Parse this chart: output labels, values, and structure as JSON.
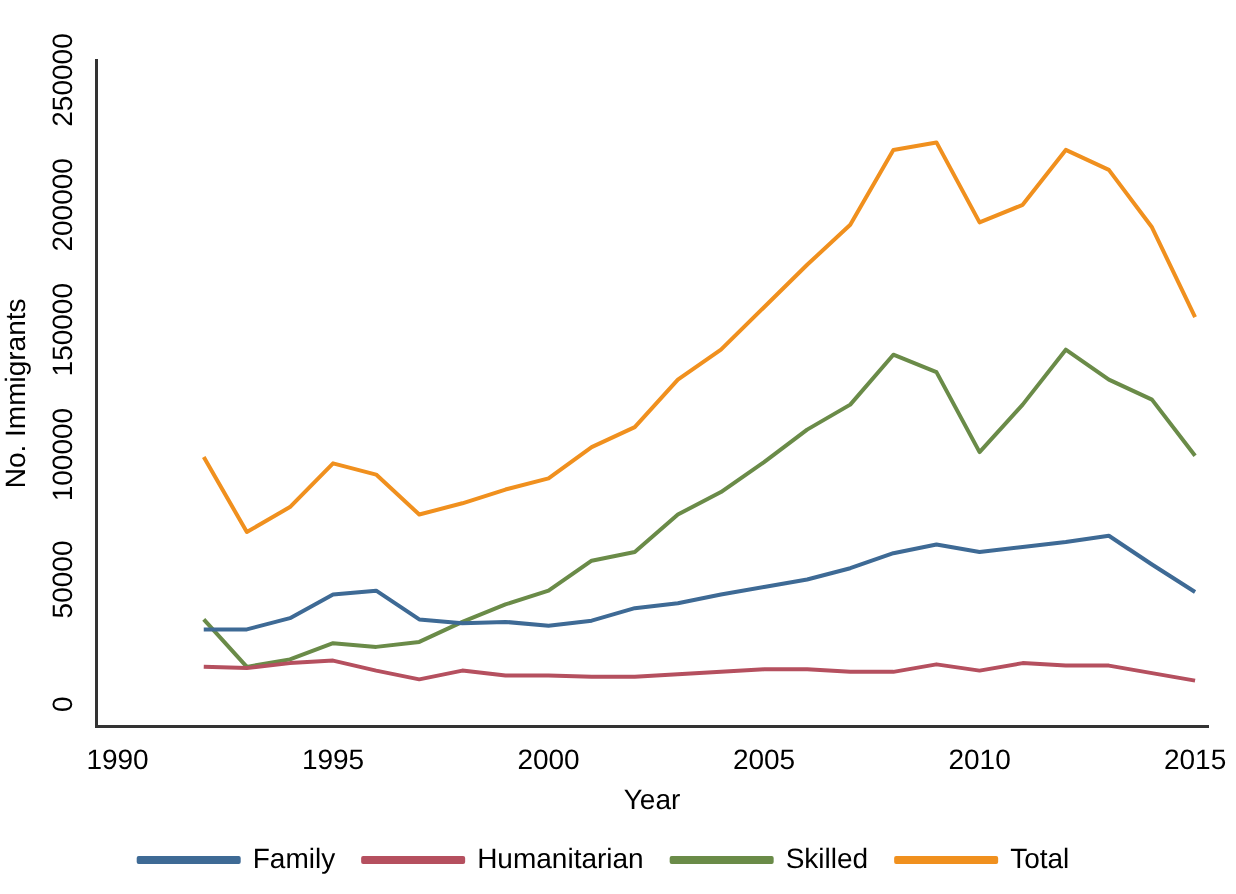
{
  "chart_data": {
    "type": "line",
    "xlabel": "Year",
    "ylabel": "No. Immigrants",
    "x": [
      1992,
      1993,
      1994,
      1995,
      1996,
      1997,
      1998,
      1999,
      2000,
      2001,
      2002,
      2003,
      2004,
      2005,
      2006,
      2007,
      2008,
      2009,
      2010,
      2011,
      2012,
      2013,
      2014,
      2015
    ],
    "series": [
      {
        "name": "Family",
        "color": "#3e6a95",
        "values": [
          30000,
          30000,
          34500,
          44000,
          45500,
          34000,
          32500,
          33000,
          31500,
          33500,
          38500,
          40500,
          44000,
          47000,
          50000,
          54500,
          60500,
          64000,
          61000,
          63000,
          65000,
          67500,
          56000,
          45000
        ]
      },
      {
        "name": "Humanitarian",
        "color": "#b5505f",
        "values": [
          15000,
          14500,
          16500,
          17500,
          13500,
          10000,
          13500,
          11500,
          11500,
          11000,
          11000,
          12000,
          13000,
          14000,
          14000,
          13000,
          13000,
          16000,
          13500,
          16500,
          15500,
          15500,
          12500,
          9500
        ]
      },
      {
        "name": "Skilled",
        "color": "#6a8b48",
        "values": [
          34000,
          15000,
          18000,
          24500,
          23000,
          25000,
          33000,
          40000,
          45500,
          57500,
          61000,
          76000,
          85000,
          97000,
          110000,
          120000,
          140000,
          133000,
          101000,
          120000,
          142000,
          130000,
          122000,
          99500
        ]
      },
      {
        "name": "Total",
        "color": "#f0901e",
        "values": [
          99000,
          69000,
          79000,
          96500,
          92000,
          76000,
          80500,
          86000,
          90500,
          103000,
          111000,
          130000,
          142000,
          159000,
          176000,
          192000,
          222000,
          225000,
          193000,
          200000,
          222000,
          214000,
          191000,
          155000
        ]
      }
    ],
    "xlim": [
      1989.5,
      2015.3
    ],
    "xticks": [
      1990,
      1995,
      2000,
      2005,
      2010,
      2015
    ],
    "ylim": [
      -9000,
      258000
    ],
    "yticks": [
      0,
      50000,
      100000,
      150000,
      200000,
      250000
    ],
    "grid": false,
    "legend": "bottom",
    "marker": "none",
    "line_style": "solid"
  }
}
